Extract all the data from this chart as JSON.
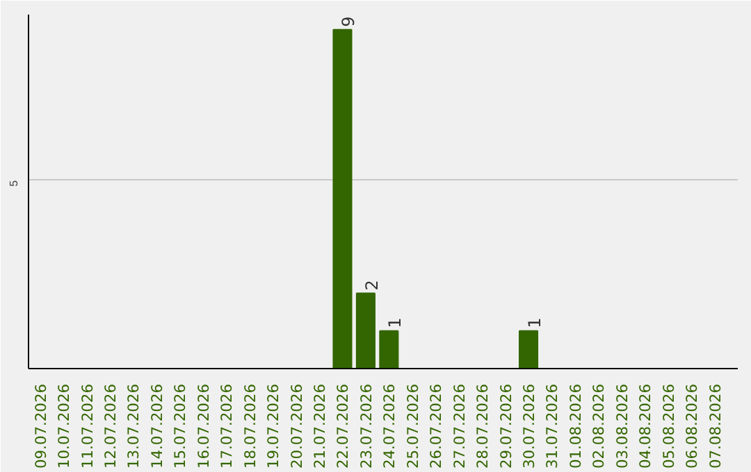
{
  "chart_data": {
    "type": "bar",
    "categories": [
      "09.07.2026",
      "10.07.2026",
      "11.07.2026",
      "12.07.2026",
      "13.07.2026",
      "14.07.2026",
      "15.07.2026",
      "16.07.2026",
      "17.07.2026",
      "18.07.2026",
      "19.07.2026",
      "20.07.2026",
      "21.07.2026",
      "22.07.2026",
      "23.07.2026",
      "24.07.2026",
      "25.07.2026",
      "26.07.2026",
      "27.07.2026",
      "28.07.2026",
      "29.07.2026",
      "30.07.2026",
      "31.07.2026",
      "01.08.2026",
      "02.08.2026",
      "03.08.2026",
      "04.08.2026",
      "05.08.2026",
      "06.08.2026",
      "07.08.2026"
    ],
    "values": [
      null,
      null,
      null,
      null,
      null,
      null,
      null,
      null,
      null,
      null,
      null,
      null,
      null,
      9,
      2,
      1,
      null,
      null,
      null,
      null,
      null,
      1,
      null,
      null,
      null,
      null,
      null,
      null,
      null,
      null
    ],
    "data_labels": true,
    "color": "#336600",
    "ylim": [
      0,
      9.4
    ],
    "yticks": [
      5
    ],
    "grid": "y"
  }
}
